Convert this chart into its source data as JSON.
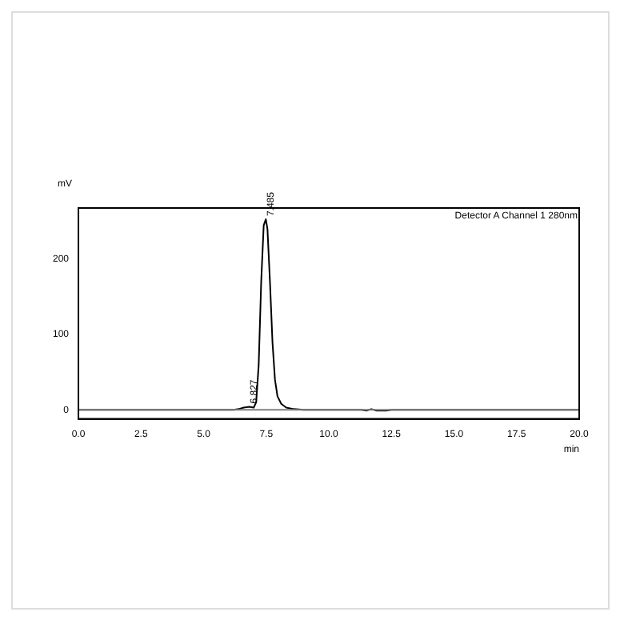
{
  "chart_data": {
    "type": "line",
    "xlabel": "min",
    "ylabel": "mV",
    "annotations": [
      "Detector A Channel 1 280nm",
      {
        "text": "6.827",
        "x": 6.827,
        "y": 4
      },
      {
        "text": "7.485",
        "x": 7.485,
        "y": 253
      }
    ],
    "series": [
      {
        "color": "#000000",
        "x": [
          0,
          6.2,
          6.4,
          6.6,
          6.827,
          7.0,
          7.1,
          7.2,
          7.3,
          7.4,
          7.485,
          7.55,
          7.65,
          7.75,
          7.85,
          7.95,
          8.1,
          8.3,
          8.6,
          9.0,
          11.3,
          11.5,
          11.7,
          11.9,
          12.3,
          12.5,
          20
        ],
        "values": [
          0,
          0,
          1,
          3,
          4,
          3,
          10,
          60,
          170,
          245,
          253,
          240,
          170,
          90,
          40,
          18,
          8,
          3,
          1,
          0,
          0,
          -1,
          1,
          -1,
          -1,
          0,
          0
        ]
      }
    ],
    "xlim": [
      0,
      20
    ],
    "xticks": [
      {
        "value": 0,
        "label": "0.0"
      },
      {
        "value": 2.5,
        "label": "2.5"
      },
      {
        "value": 5,
        "label": "5.0"
      },
      {
        "value": 7.5,
        "label": "7.5"
      },
      {
        "value": 10,
        "label": "10.0"
      },
      {
        "value": 12.5,
        "label": "12.5"
      },
      {
        "value": 15,
        "label": "15.0"
      },
      {
        "value": 17.5,
        "label": "17.5"
      },
      {
        "value": 20,
        "label": "20.0"
      }
    ],
    "ylim": [
      -12,
      268
    ],
    "yticks": [
      0,
      100,
      200
    ],
    "ref_lines": [
      {
        "axis": "y",
        "value": 0,
        "color": "#808080"
      }
    ],
    "grid": false,
    "legend": false,
    "marker": "none",
    "line_style": "solid"
  }
}
